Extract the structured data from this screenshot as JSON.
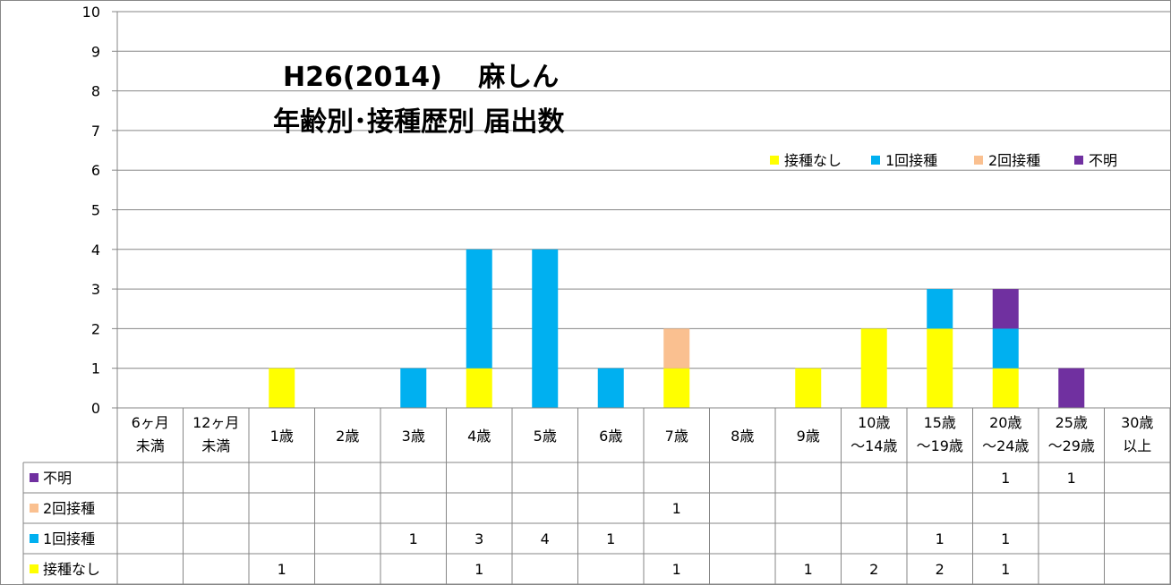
{
  "chart_data": {
    "type": "bar",
    "stacked": true,
    "title_lines": [
      "H26(2014)　 麻しん",
      "年齢別･接種歴別 届出数"
    ],
    "categories": [
      [
        "6ヶ月",
        "未満"
      ],
      [
        "12ヶ月",
        "未満"
      ],
      [
        "1歳"
      ],
      [
        "2歳"
      ],
      [
        "3歳"
      ],
      [
        "4歳"
      ],
      [
        "5歳"
      ],
      [
        "6歳"
      ],
      [
        "7歳"
      ],
      [
        "8歳"
      ],
      [
        "9歳"
      ],
      [
        "10歳",
        "～14歳"
      ],
      [
        "15歳",
        "～19歳"
      ],
      [
        "20歳",
        "～24歳"
      ],
      [
        "25歳",
        "～29歳"
      ],
      [
        "30歳",
        "以上"
      ]
    ],
    "ylim": [
      0,
      10
    ],
    "yticks": [
      "0",
      "1",
      "2",
      "3",
      "4",
      "5",
      "6",
      "7",
      "8",
      "9",
      "10"
    ],
    "grid": true,
    "legend_position": "top-right",
    "series": [
      {
        "name": "接種なし",
        "color": "#ffff00",
        "values": [
          null,
          null,
          1,
          null,
          null,
          1,
          null,
          null,
          1,
          null,
          1,
          2,
          2,
          1,
          null,
          null
        ]
      },
      {
        "name": "1回接種",
        "color": "#00b0f0",
        "values": [
          null,
          null,
          null,
          null,
          1,
          3,
          4,
          1,
          null,
          null,
          null,
          null,
          1,
          1,
          null,
          null
        ]
      },
      {
        "name": "2回接種",
        "color": "#fac090",
        "values": [
          null,
          null,
          null,
          null,
          null,
          null,
          null,
          null,
          1,
          null,
          null,
          null,
          null,
          null,
          null,
          null
        ]
      },
      {
        "name": "不明",
        "color": "#7030a0",
        "values": [
          null,
          null,
          null,
          null,
          null,
          null,
          null,
          null,
          null,
          null,
          null,
          null,
          null,
          1,
          1,
          null
        ]
      }
    ],
    "table_row_order": [
      3,
      2,
      1,
      0
    ],
    "legend_order": [
      0,
      1,
      2,
      3
    ]
  }
}
